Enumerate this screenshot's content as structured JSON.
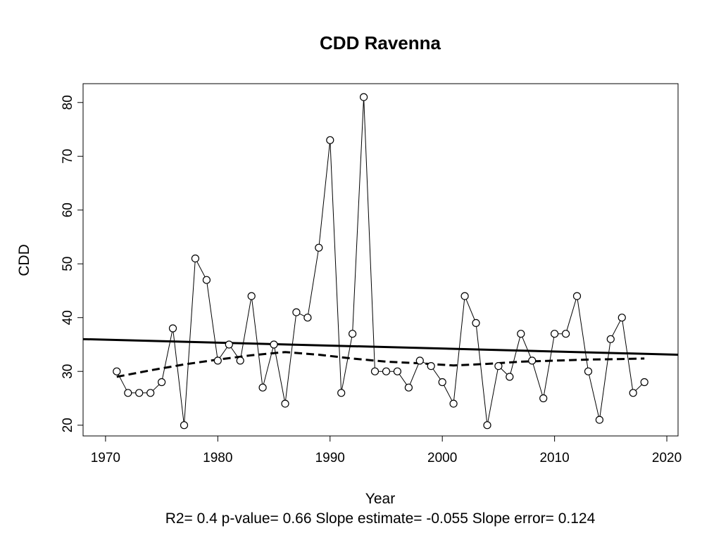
{
  "chart_data": {
    "type": "scatter",
    "title": "CDD   Ravenna",
    "xlabel": "Year",
    "ylabel": "CDD",
    "xlim": [
      1968,
      2021
    ],
    "ylim": [
      18,
      83.5
    ],
    "x_ticks": [
      "1970",
      "1980",
      "1990",
      "2000",
      "2010",
      "2020"
    ],
    "y_ticks": [
      "20",
      "30",
      "40",
      "50",
      "60",
      "70",
      "80"
    ],
    "grid": false,
    "legend": "none",
    "series": [
      {
        "style": "points-connected-by-lines",
        "x": [
          1971,
          1972,
          1973,
          1974,
          1975,
          1976,
          1977,
          1978,
          1979,
          1980,
          1981,
          1982,
          1983,
          1984,
          1985,
          1986,
          1987,
          1988,
          1989,
          1990,
          1991,
          1992,
          1993,
          1994,
          1995,
          1996,
          1997,
          1998,
          1999,
          2000,
          2001,
          2002,
          2003,
          2004,
          2005,
          2006,
          2007,
          2008,
          2009,
          2010,
          2011,
          2012,
          2013,
          2014,
          2015,
          2016,
          2017,
          2018
        ],
        "values": [
          30,
          26,
          26,
          26,
          28,
          38,
          20,
          51,
          47,
          32,
          35,
          32,
          44,
          27,
          35,
          24,
          41,
          40,
          53,
          73,
          26,
          37,
          81,
          30,
          30,
          30,
          27,
          32,
          31,
          28,
          24,
          44,
          39,
          20,
          31,
          29,
          37,
          32,
          25,
          37,
          37,
          44,
          30,
          21,
          36,
          40,
          26,
          28
        ]
      },
      {
        "style": "solid-trend-line",
        "x": [
          1968,
          2021
        ],
        "values": [
          36.0,
          33.1
        ]
      },
      {
        "style": "dashed-smooth-line",
        "x": [
          1971,
          1974,
          1977,
          1980,
          1983,
          1986,
          1989,
          1992,
          1995,
          1998,
          2001,
          2004,
          2007,
          2010,
          2013,
          2016,
          2018
        ],
        "values": [
          29.0,
          30.2,
          31.3,
          32.2,
          33.0,
          33.6,
          33.1,
          32.4,
          31.8,
          31.5,
          31.1,
          31.4,
          31.8,
          32.0,
          32.2,
          32.3,
          32.4
        ]
      }
    ],
    "stats_text": "R2= 0.4  p-value= 0.66  Slope estimate= -0.055  Slope error= 0.124"
  },
  "colors": {
    "ink": "#000000",
    "background": "#ffffff"
  }
}
